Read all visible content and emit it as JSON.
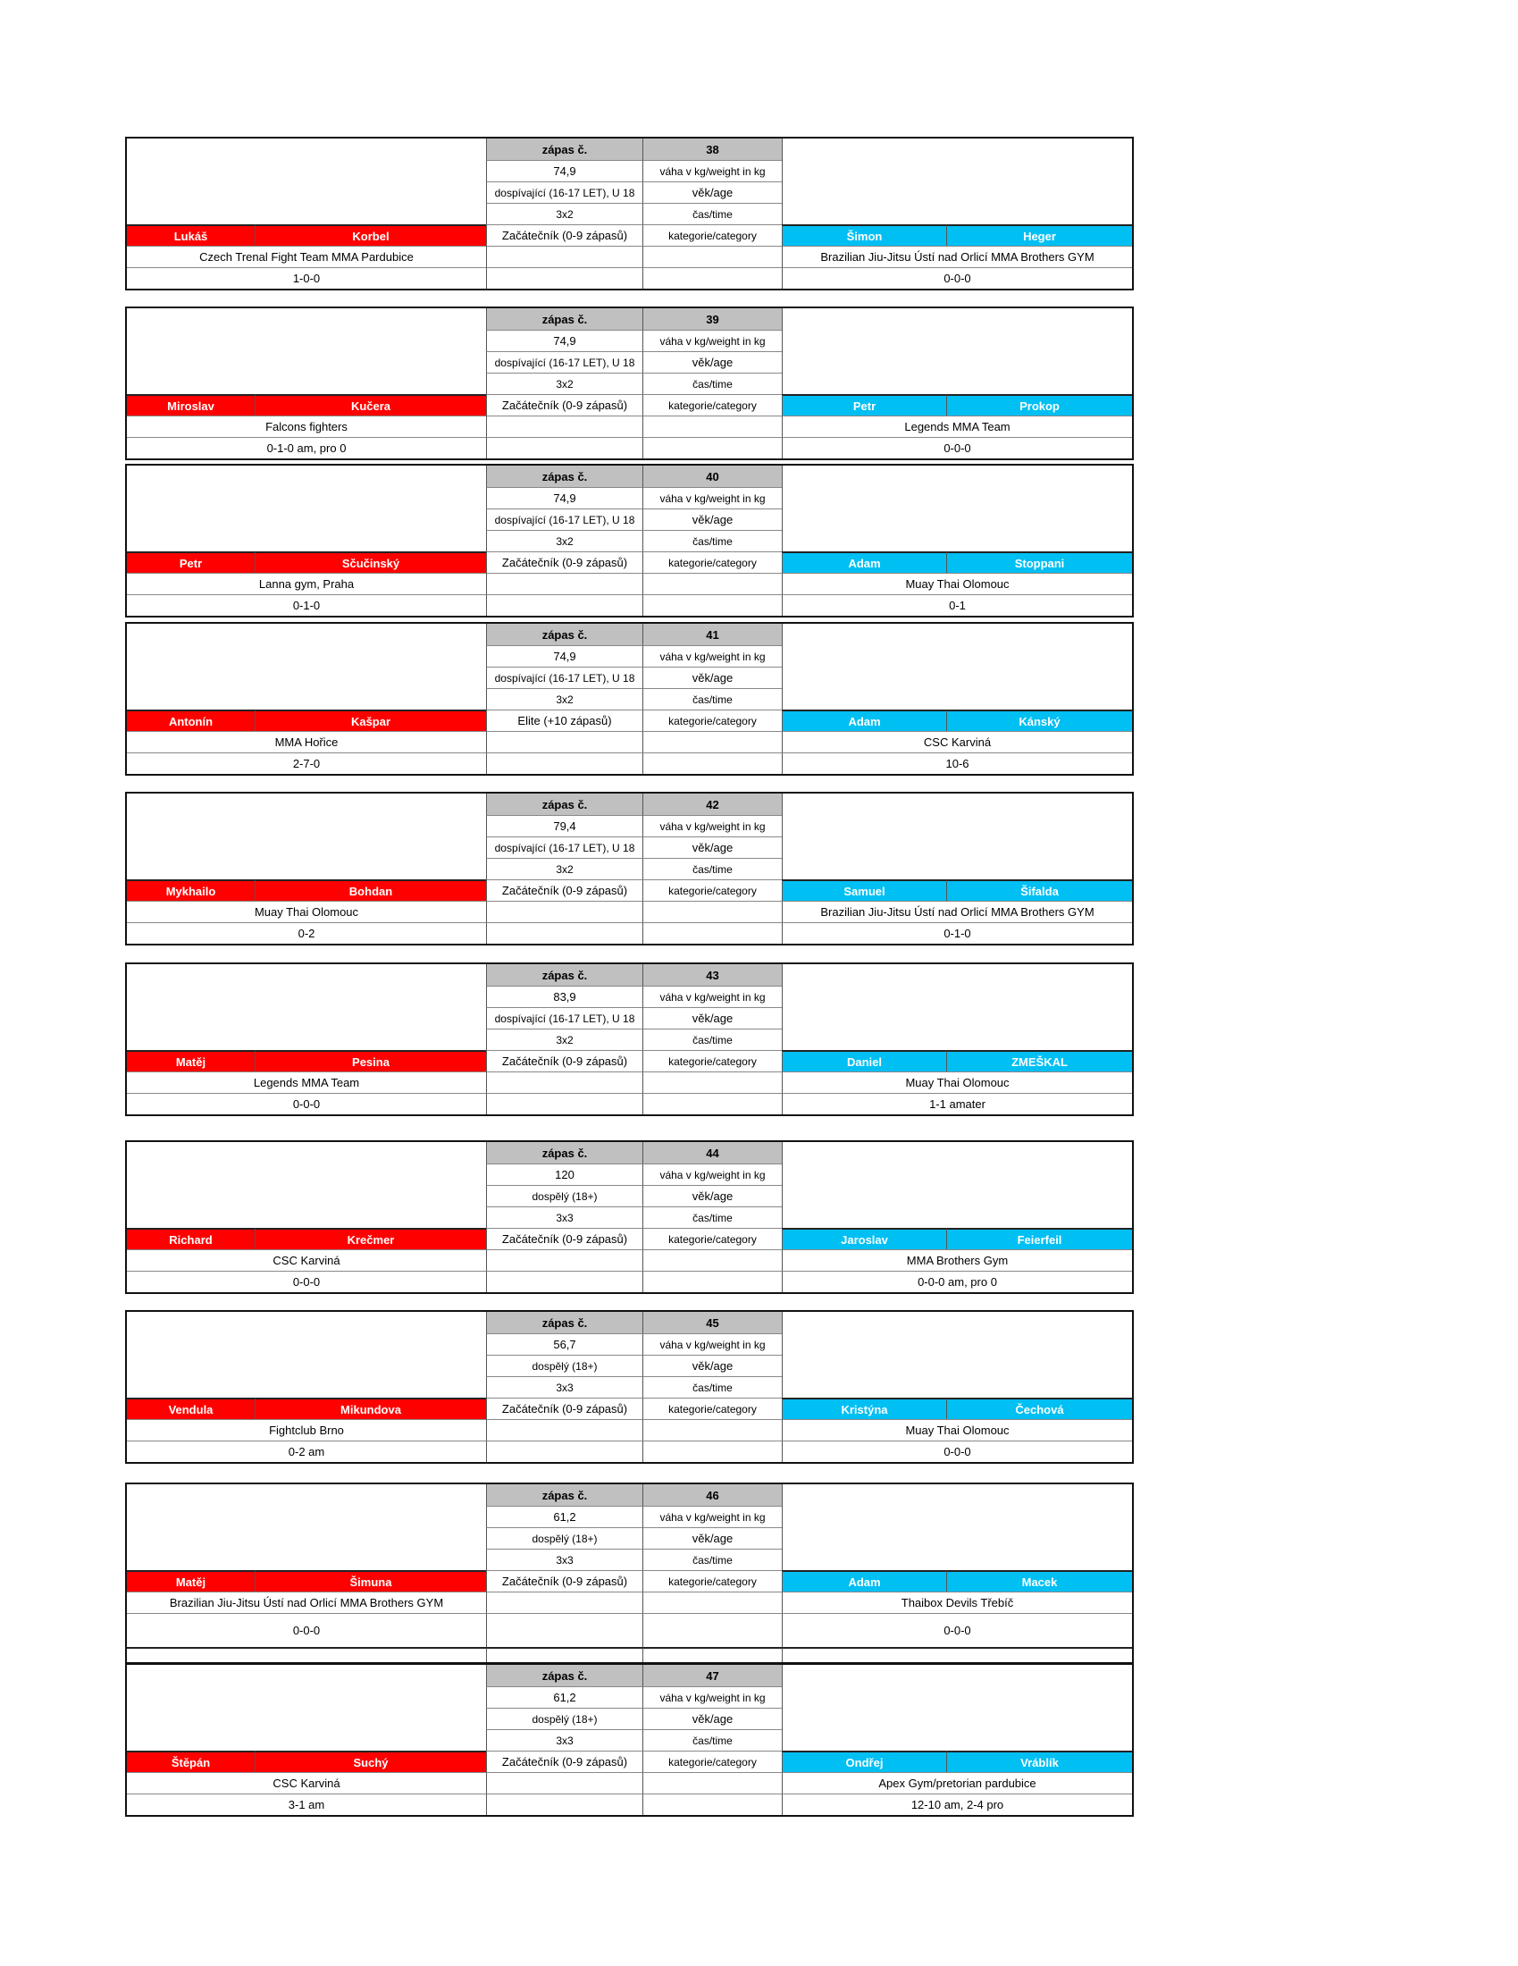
{
  "labels": {
    "match_no": "zápas č.",
    "weight": "váha v kg/weight in kg",
    "age": "věk/age",
    "time": "čas/time",
    "category": "kategorie/category"
  },
  "colors": {
    "red_corner": "#ff0000",
    "blue_corner": "#00bff3",
    "header": "#c0c0c0"
  },
  "matches": [
    {
      "no": "38",
      "weight": "74,9",
      "age": "dospívající (16-17 LET), U 18",
      "time": "3x2",
      "category": "Začátečník (0-9 zápasů)",
      "red": {
        "first": "Lukáš",
        "last": "Korbel",
        "club": "Czech Trenal Fight Team MMA Pardubice",
        "record": "1-0-0"
      },
      "blue": {
        "first": "Šimon",
        "last": "Heger",
        "club": "Brazilian Jiu-Jitsu Ústí nad Orlicí MMA Brothers GYM",
        "record": "0-0-0"
      }
    },
    {
      "no": "39",
      "weight": "74,9",
      "age": "dospívající (16-17 LET), U 18",
      "time": "3x2",
      "category": "Začátečník (0-9 zápasů)",
      "red": {
        "first": "Miroslav",
        "last": "Kučera",
        "club": "Falcons fighters",
        "record": "0-1-0 am, pro 0"
      },
      "blue": {
        "first": "Petr",
        "last": "Prokop",
        "club": "Legends MMA Team",
        "record": "0-0-0"
      }
    },
    {
      "no": "40",
      "weight": "74,9",
      "age": "dospívající (16-17 LET), U 18",
      "time": "3x2",
      "category": "Začátečník (0-9 zápasů)",
      "red": {
        "first": "Petr",
        "last": "Sčučinský",
        "club": "Lanna gym, Praha",
        "record": "0-1-0"
      },
      "blue": {
        "first": "Adam",
        "last": "Stoppani",
        "club": "Muay Thai Olomouc",
        "record": "0-1"
      }
    },
    {
      "no": "41",
      "weight": "74,9",
      "age": "dospívající (16-17 LET), U 18",
      "time": "3x2",
      "category": "Elite (+10 zápasů)",
      "red": {
        "first": "Antonín",
        "last": "Kašpar",
        "club": "MMA Hořice",
        "record": "2-7-0"
      },
      "blue": {
        "first": "Adam",
        "last": "Kánský",
        "club": "CSC Karviná",
        "record": "10-6"
      }
    },
    {
      "no": "42",
      "weight": "79,4",
      "age": "dospívající (16-17 LET), U 18",
      "time": "3x2",
      "category": "Začátečník (0-9 zápasů)",
      "red": {
        "first": "Mykhailo",
        "last": "Bohdan",
        "club": "Muay Thai Olomouc",
        "record": "0-2"
      },
      "blue": {
        "first": "Samuel",
        "last": "Šifalda",
        "club": "Brazilian Jiu-Jitsu Ústí nad Orlicí MMA Brothers GYM",
        "record": "0-1-0"
      }
    },
    {
      "no": "43",
      "weight": "83,9",
      "age": "dospívající (16-17 LET), U 18",
      "time": "3x2",
      "category": "Začátečník (0-9 zápasů)",
      "red": {
        "first": "Matěj",
        "last": "Pesina",
        "club": "Legends MMA Team",
        "record": "0-0-0"
      },
      "blue": {
        "first": "Daniel",
        "last": "ZMEŠKAL",
        "club": "Muay Thai Olomouc",
        "record": "1-1 amater"
      }
    },
    {
      "no": "44",
      "weight": "120",
      "age": "dospělý (18+)",
      "time": "3x3",
      "category": "Začátečník (0-9 zápasů)",
      "red": {
        "first": "Richard",
        "last": "Krečmer",
        "club": "CSC Karviná",
        "record": "0-0-0"
      },
      "blue": {
        "first": "Jaroslav",
        "last": "Feierfeil",
        "club": "MMA Brothers Gym",
        "record": "0-0-0 am, pro 0"
      }
    },
    {
      "no": "45",
      "weight": "56,7",
      "age": "dospělý (18+)",
      "time": "3x3",
      "category": "Začátečník (0-9 zápasů)",
      "red": {
        "first": "Vendula",
        "last": "Mikundova",
        "club": "Fightclub Brno",
        "record": "0-2 am"
      },
      "blue": {
        "first": "Kristýna",
        "last": "Čechová",
        "club": "Muay Thai Olomouc",
        "record": "0-0-0"
      }
    },
    {
      "no": "46",
      "weight": "61,2",
      "age": "dospělý (18+)",
      "time": "3x3",
      "category": "Začátečník (0-9 zápasů)",
      "red": {
        "first": "Matěj",
        "last": "Šimuna",
        "club": "Brazilian Jiu-Jitsu Ústí nad Orlicí MMA Brothers GYM",
        "record": "0-0-0"
      },
      "blue": {
        "first": "Adam",
        "last": "Macek",
        "club": "Thaibox Devils Třebíč",
        "record": "0-0-0"
      }
    },
    {
      "no": "47",
      "weight": "61,2",
      "age": "dospělý (18+)",
      "time": "3x3",
      "category": "Začátečník (0-9 zápasů)",
      "red": {
        "first": "Štěpán",
        "last": "Suchý",
        "club": "CSC Karviná",
        "record": "3-1 am"
      },
      "blue": {
        "first": "Ondřej",
        "last": "Vráblík",
        "club": "Apex Gym/pretorian pardubice",
        "record": "12-10 am, 2-4 pro"
      }
    }
  ]
}
